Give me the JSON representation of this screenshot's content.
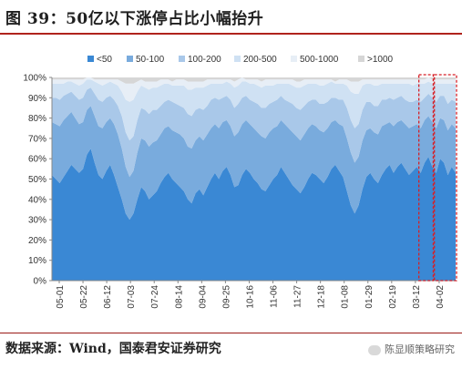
{
  "figure": {
    "title": "图 39：50亿以下涨停占比小幅抬升"
  },
  "footer": {
    "source": "数据来源：Wind，国泰君安证券研究",
    "watermark": "陈显顺策略研究"
  },
  "colors": {
    "lt50": "#3a88d4",
    "b50_100": "#79abdd",
    "b100_200": "#a9c8e9",
    "b200_500": "#cfe1f3",
    "b500_1000": "#e7eef6",
    "gt1000": "#d6d6d6",
    "highlight": "#d61f26",
    "title_rule": "#b0231d"
  },
  "chart_data": {
    "type": "area",
    "stacked": true,
    "ylim": [
      0,
      100
    ],
    "y_ticks": [
      "0%",
      "10%",
      "20%",
      "30%",
      "40%",
      "50%",
      "60%",
      "70%",
      "80%",
      "90%",
      "100%"
    ],
    "x_tick_labels": [
      "05-01",
      "05-22",
      "06-12",
      "07-03",
      "07-24",
      "08-14",
      "09-04",
      "09-25",
      "10-16",
      "11-06",
      "11-27",
      "12-18",
      "01-08",
      "01-29",
      "02-19",
      "03-12",
      "04-02"
    ],
    "legend": {
      "position": "top",
      "entries": [
        "<50",
        "50-100",
        "100-200",
        "200-500",
        "500-1000",
        ">1000"
      ]
    },
    "series": [
      {
        "name": "<50",
        "values": [
          52,
          50,
          48,
          51,
          54,
          57,
          55,
          53,
          55,
          62,
          65,
          58,
          52,
          50,
          54,
          57,
          52,
          46,
          40,
          33,
          30,
          33,
          40,
          46,
          44,
          40,
          42,
          44,
          48,
          51,
          53,
          50,
          48,
          46,
          44,
          40,
          38,
          43,
          45,
          42,
          46,
          50,
          53,
          50,
          54,
          56,
          52,
          46,
          47,
          52,
          55,
          53,
          50,
          48,
          45,
          44,
          47,
          50,
          52,
          56,
          53,
          50,
          47,
          45,
          43,
          46,
          50,
          53,
          52,
          50,
          48,
          51,
          55,
          57,
          54,
          51,
          44,
          37,
          33,
          37,
          45,
          51,
          53,
          50,
          48,
          52,
          55,
          57,
          53,
          56,
          58,
          55,
          52,
          54,
          56,
          53,
          58,
          61,
          56,
          53,
          60,
          58,
          52,
          56,
          53
        ]
      },
      {
        "name": "50-100",
        "values": [
          26,
          27,
          28,
          28,
          27,
          26,
          25,
          24,
          23,
          22,
          21,
          23,
          24,
          25,
          24,
          23,
          25,
          26,
          25,
          23,
          21,
          21,
          23,
          24,
          25,
          26,
          26,
          25,
          24,
          24,
          23,
          24,
          25,
          26,
          26,
          26,
          27,
          26,
          26,
          27,
          26,
          25,
          24,
          25,
          24,
          23,
          24,
          25,
          26,
          25,
          24,
          24,
          25,
          25,
          26,
          26,
          26,
          25,
          24,
          23,
          24,
          25,
          26,
          26,
          26,
          26,
          25,
          24,
          24,
          24,
          25,
          24,
          23,
          22,
          23,
          25,
          26,
          26,
          25,
          24,
          24,
          23,
          22,
          23,
          24,
          24,
          22,
          21,
          23,
          22,
          21,
          22,
          23,
          22,
          21,
          22,
          21,
          20,
          22,
          22,
          20,
          21,
          22,
          21,
          22
        ]
      },
      {
        "name": "100-200",
        "values": [
          12,
          13,
          13,
          12,
          11,
          10,
          11,
          12,
          12,
          10,
          9,
          11,
          13,
          13,
          12,
          11,
          12,
          14,
          16,
          17,
          18,
          17,
          16,
          15,
          15,
          16,
          16,
          15,
          14,
          13,
          13,
          14,
          14,
          14,
          15,
          16,
          16,
          15,
          14,
          15,
          14,
          14,
          13,
          14,
          12,
          12,
          13,
          14,
          14,
          13,
          12,
          12,
          13,
          14,
          14,
          15,
          14,
          13,
          13,
          12,
          12,
          13,
          14,
          14,
          15,
          14,
          13,
          12,
          13,
          13,
          14,
          13,
          12,
          11,
          12,
          13,
          15,
          16,
          17,
          16,
          15,
          14,
          13,
          13,
          14,
          13,
          12,
          12,
          13,
          12,
          12,
          12,
          13,
          12,
          12,
          13,
          11,
          11,
          12,
          13,
          11,
          12,
          13,
          12,
          13
        ]
      },
      {
        "name": "200-500",
        "values": [
          7,
          7,
          8,
          6,
          6,
          5,
          6,
          7,
          7,
          5,
          4,
          6,
          8,
          8,
          7,
          7,
          8,
          10,
          12,
          16,
          19,
          18,
          14,
          11,
          11,
          12,
          11,
          11,
          10,
          9,
          8,
          8,
          9,
          10,
          11,
          12,
          13,
          11,
          10,
          11,
          10,
          8,
          7,
          8,
          7,
          7,
          8,
          10,
          9,
          8,
          7,
          8,
          9,
          9,
          10,
          11,
          9,
          8,
          8,
          6,
          8,
          9,
          9,
          10,
          11,
          10,
          9,
          8,
          8,
          9,
          9,
          9,
          8,
          7,
          8,
          8,
          11,
          14,
          17,
          15,
          12,
          9,
          9,
          10,
          10,
          8,
          8,
          7,
          8,
          7,
          6,
          8,
          9,
          8,
          8,
          9,
          7,
          6,
          7,
          9,
          6,
          6,
          10,
          8,
          9
        ]
      },
      {
        "name": "500-1000",
        "values": [
          2,
          2,
          2,
          2,
          1,
          1,
          2,
          3,
          2,
          1,
          1,
          1,
          2,
          3,
          2,
          1,
          2,
          3,
          5,
          8,
          9,
          8,
          5,
          3,
          3,
          4,
          3,
          3,
          3,
          2,
          2,
          2,
          3,
          3,
          3,
          4,
          4,
          3,
          3,
          3,
          3,
          2,
          2,
          2,
          2,
          1,
          2,
          3,
          3,
          3,
          1,
          2,
          2,
          3,
          3,
          3,
          3,
          3,
          2,
          2,
          2,
          2,
          3,
          3,
          3,
          3,
          2,
          2,
          2,
          3,
          3,
          2,
          1,
          1,
          2,
          2,
          3,
          5,
          6,
          6,
          3,
          2,
          2,
          3,
          3,
          2,
          2,
          2,
          2,
          2,
          2,
          2,
          2,
          3,
          2,
          2,
          2,
          2,
          2,
          2,
          2,
          2,
          2,
          2,
          2
        ]
      },
      {
        "name": ">1000",
        "values": [
          1,
          1,
          1,
          1,
          1,
          1,
          1,
          1,
          1,
          0,
          0,
          1,
          1,
          1,
          1,
          1,
          1,
          1,
          2,
          3,
          3,
          3,
          2,
          1,
          2,
          2,
          2,
          2,
          1,
          1,
          1,
          2,
          1,
          1,
          1,
          2,
          2,
          2,
          2,
          2,
          1,
          1,
          1,
          1,
          1,
          1,
          1,
          2,
          1,
          1,
          1,
          1,
          1,
          1,
          2,
          1,
          1,
          1,
          1,
          1,
          1,
          1,
          1,
          2,
          2,
          1,
          1,
          1,
          1,
          1,
          1,
          1,
          1,
          1,
          1,
          1,
          1,
          2,
          2,
          2,
          1,
          1,
          1,
          1,
          1,
          1,
          1,
          1,
          1,
          1,
          1,
          1,
          1,
          1,
          1,
          1,
          1,
          1,
          1,
          1,
          1,
          1,
          1,
          1,
          1
        ]
      }
    ],
    "highlight_ranges": [
      [
        95,
        98
      ],
      [
        99,
        104
      ]
    ]
  }
}
